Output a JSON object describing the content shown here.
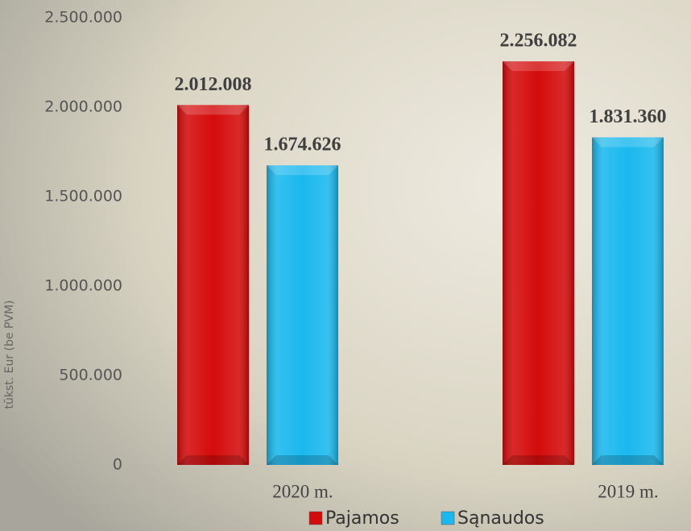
{
  "chart_data": {
    "type": "bar",
    "y_label": "tūkst. Eur (be PVM)",
    "categories": [
      "2020 m.",
      "2019 m."
    ],
    "series": [
      {
        "name": "Pajamos",
        "color": "#d40b0b",
        "values": [
          2012008,
          2256082
        ],
        "value_labels": [
          "2.012.008",
          "2.256.082"
        ]
      },
      {
        "name": "Sąnaudos",
        "color": "#1ab8ee",
        "values": [
          1674626,
          1831360
        ],
        "value_labels": [
          "1.674.626",
          "1.831.360"
        ]
      }
    ],
    "ylim": [
      0,
      2500000
    ],
    "yticks": [
      0,
      {
        "value": 500000,
        "label": "500.000"
      },
      {
        "value": 1000000,
        "label": "1.000.000"
      },
      {
        "value": 1500000,
        "label": "1.500.000"
      },
      {
        "value": 2000000,
        "label": "2.000.000"
      },
      {
        "value": 2500000,
        "label": "2.500.000"
      }
    ],
    "grid": false,
    "legend": "bottom"
  }
}
